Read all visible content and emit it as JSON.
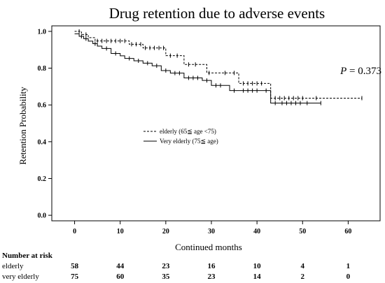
{
  "chart_data": {
    "type": "line",
    "title": "Drug retention due to adverse events",
    "xlabel": "Continued months",
    "ylabel": "Retention Probability",
    "xlim": [
      -5,
      67
    ],
    "ylim": [
      -0.03,
      1.03
    ],
    "x_ticks": [
      0,
      10,
      20,
      30,
      40,
      50,
      60
    ],
    "y_ticks": [
      0.0,
      0.2,
      0.4,
      0.6,
      0.8,
      1.0
    ],
    "x_tick_labels": [
      "0",
      "10",
      "20",
      "30",
      "40",
      "50",
      "60"
    ],
    "y_tick_labels": [
      "0.0",
      "0.2",
      "0.4",
      "0.6",
      "0.8",
      "1.0"
    ],
    "grid": false,
    "legend_position": "center-left",
    "annotation": {
      "italic": "P",
      "rest": " = 0.373"
    },
    "series": [
      {
        "name": "elderly (65≦ age <75)",
        "style": "dashed",
        "steps": [
          [
            0,
            1.0
          ],
          [
            1.5,
            0.983
          ],
          [
            3,
            0.966
          ],
          [
            4.5,
            0.948
          ],
          [
            12,
            0.93
          ],
          [
            15,
            0.91
          ],
          [
            20,
            0.868
          ],
          [
            24,
            0.82
          ],
          [
            29,
            0.774
          ],
          [
            36,
            0.717
          ],
          [
            43,
            0.637
          ],
          [
            63,
            0.637
          ]
        ],
        "censors": [
          1,
          2.5,
          5,
          6,
          7,
          8,
          9,
          10,
          11,
          12.5,
          13.5,
          14.5,
          15.5,
          16.5,
          17.5,
          18.5,
          19.5,
          21,
          22.5,
          25,
          26.5,
          29.5,
          33,
          35,
          37,
          38,
          39,
          40,
          41,
          44,
          45,
          46,
          47,
          48,
          49,
          50,
          53,
          63
        ]
      },
      {
        "name": "Very elderly (75≦ age)",
        "style": "solid",
        "steps": [
          [
            0,
            0.987
          ],
          [
            1,
            0.973
          ],
          [
            2,
            0.96
          ],
          [
            3,
            0.947
          ],
          [
            4,
            0.933
          ],
          [
            5,
            0.92
          ],
          [
            6,
            0.907
          ],
          [
            8,
            0.88
          ],
          [
            10,
            0.867
          ],
          [
            11,
            0.853
          ],
          [
            13,
            0.84
          ],
          [
            15,
            0.827
          ],
          [
            17,
            0.813
          ],
          [
            19,
            0.787
          ],
          [
            21,
            0.773
          ],
          [
            24,
            0.747
          ],
          [
            28,
            0.733
          ],
          [
            30,
            0.706
          ],
          [
            34,
            0.678
          ],
          [
            43,
            0.61
          ],
          [
            54,
            0.61
          ]
        ],
        "censors": [
          1.5,
          2.5,
          4.5,
          7,
          9,
          12,
          14,
          16,
          18,
          20,
          22,
          23,
          25,
          26,
          27,
          29,
          31,
          32,
          35,
          37,
          38,
          39,
          40,
          42,
          44,
          45.5,
          46.5,
          47.5,
          48.5,
          49.5,
          51,
          54
        ]
      }
    ],
    "risk_table": {
      "title": "Number at risk",
      "times": [
        0,
        10,
        20,
        30,
        40,
        50,
        60
      ],
      "rows": [
        {
          "label": "elderly",
          "values": [
            "58",
            "44",
            "23",
            "16",
            "10",
            "4",
            "1"
          ]
        },
        {
          "label": "very elderly",
          "values": [
            "75",
            "60",
            "35",
            "23",
            "14",
            "2",
            "0"
          ]
        }
      ]
    }
  }
}
